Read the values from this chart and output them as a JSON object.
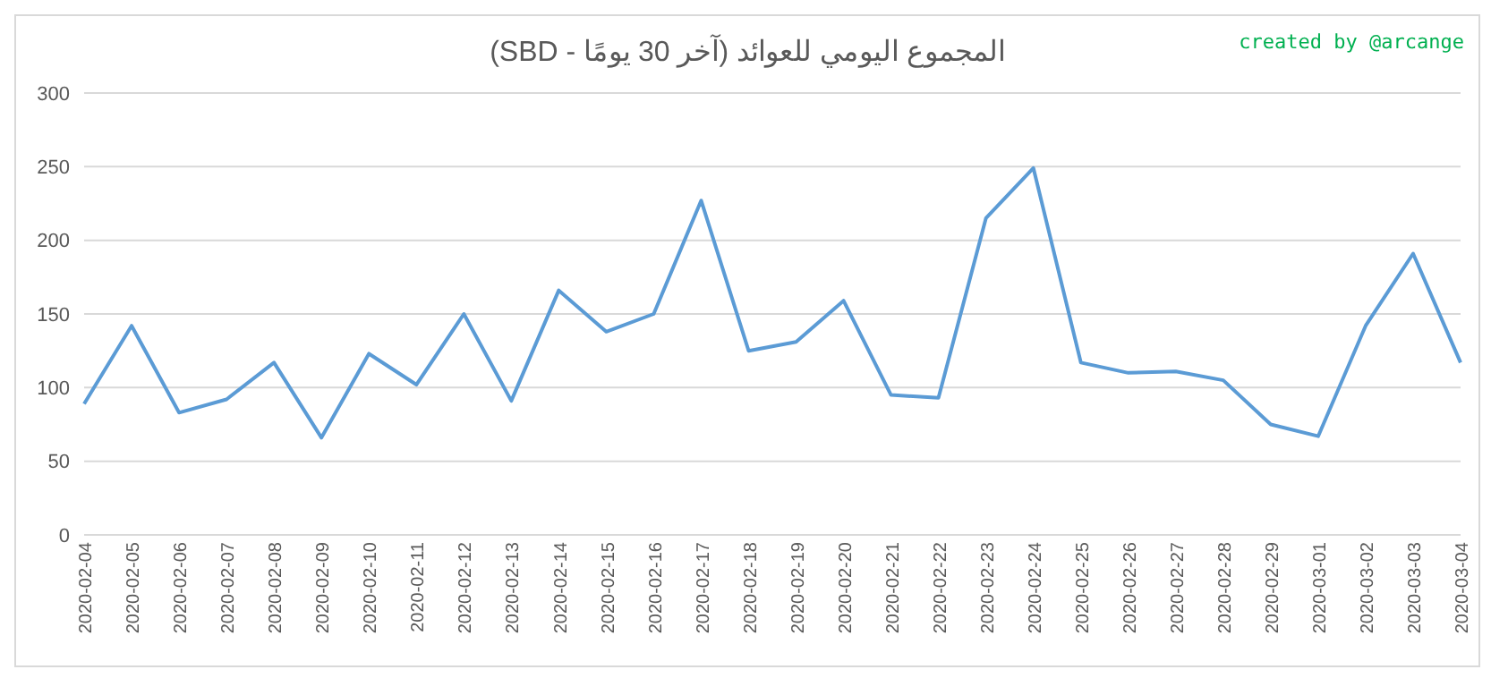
{
  "chart_data": {
    "type": "line",
    "title": "المجموع اليومي للعوائد (آخر 30 يومًا - SBD)",
    "annotations": [
      "created by @arcange"
    ],
    "categories": [
      "2020-02-04",
      "2020-02-05",
      "2020-02-06",
      "2020-02-07",
      "2020-02-08",
      "2020-02-09",
      "2020-02-10",
      "2020-02-11",
      "2020-02-12",
      "2020-02-13",
      "2020-02-14",
      "2020-02-15",
      "2020-02-16",
      "2020-02-17",
      "2020-02-18",
      "2020-02-19",
      "2020-02-20",
      "2020-02-21",
      "2020-02-22",
      "2020-02-23",
      "2020-02-24",
      "2020-02-25",
      "2020-02-26",
      "2020-02-27",
      "2020-02-28",
      "2020-02-29",
      "2020-03-01",
      "2020-03-02",
      "2020-03-03",
      "2020-03-04"
    ],
    "series": [
      {
        "color": "#5b9bd5",
        "values": [
          89,
          142,
          83,
          92,
          117,
          66,
          123,
          102,
          150,
          91,
          166,
          138,
          150,
          227,
          125,
          131,
          159,
          95,
          93,
          215,
          249,
          117,
          110,
          111,
          105,
          75,
          67,
          142,
          191,
          117
        ]
      }
    ],
    "ylim": [
      0,
      300
    ],
    "yticks": [
      0,
      50,
      100,
      150,
      200,
      250,
      300
    ],
    "grid": "y",
    "legend": false,
    "marker": "none",
    "line_style": "solid"
  }
}
